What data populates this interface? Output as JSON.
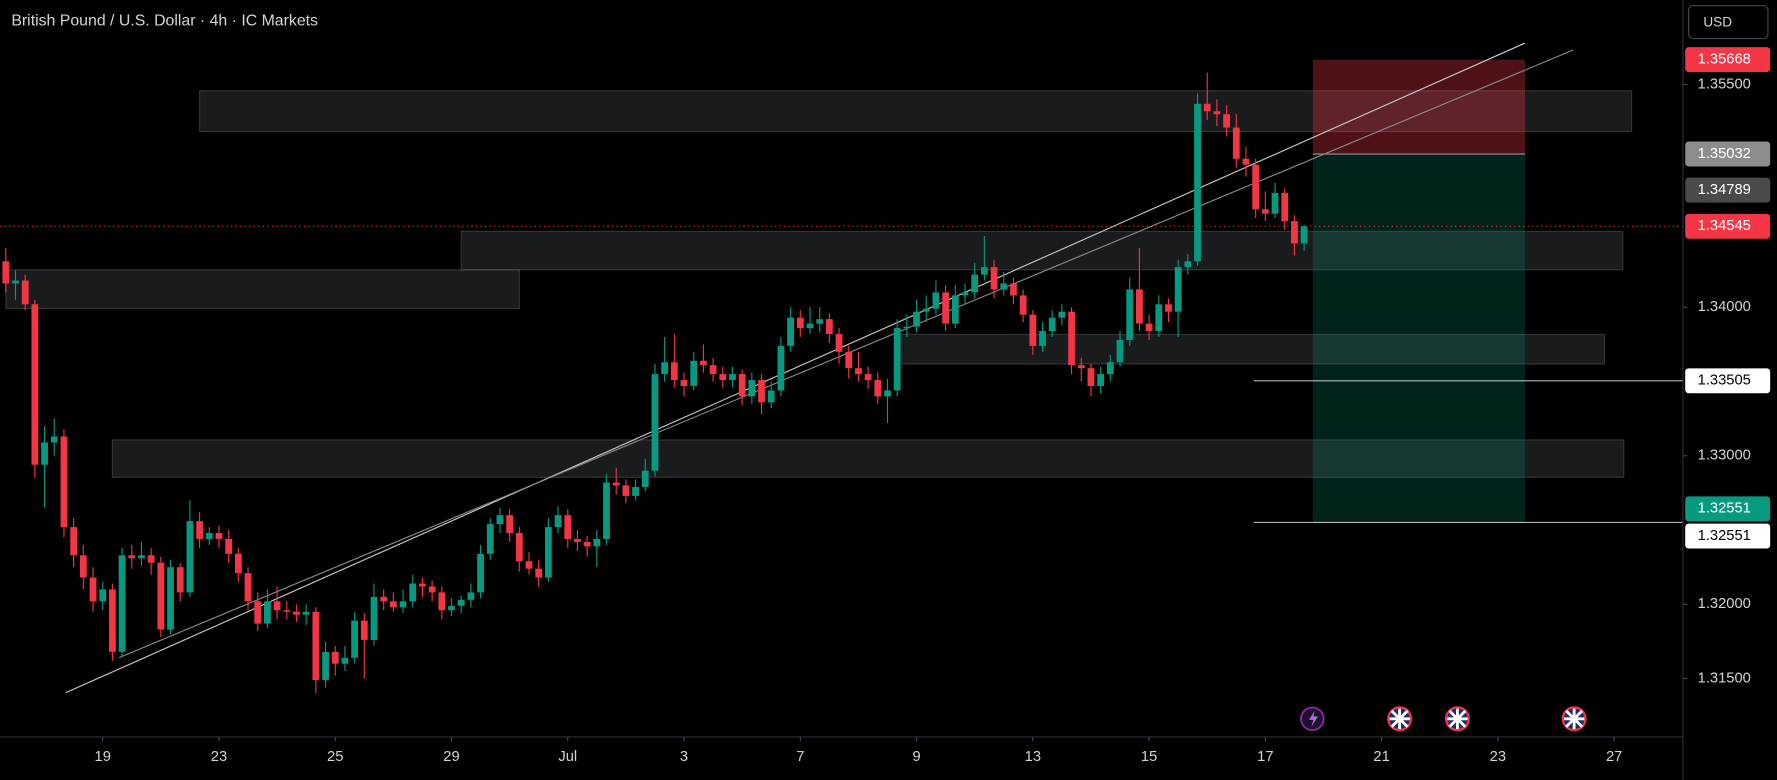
{
  "chart_data": {
    "type": "candlestick",
    "title": "British Pound / U.S. Dollar · 4h · IC Markets",
    "currency": "USD",
    "up_color": "#089981",
    "down_color": "#f23645",
    "xlim": [
      -0.6,
      173.1
    ],
    "ylim": [
      1.31107,
      1.36069
    ],
    "xticks": [
      {
        "value": 10,
        "label": "19"
      },
      {
        "value": 22,
        "label": "23"
      },
      {
        "value": 34,
        "label": "25"
      },
      {
        "value": 46,
        "label": "29"
      },
      {
        "value": 58,
        "label": "Jul"
      },
      {
        "value": 70,
        "label": "3"
      },
      {
        "value": 82,
        "label": "7"
      },
      {
        "value": 94,
        "label": "9"
      },
      {
        "value": 106,
        "label": "13"
      },
      {
        "value": 118,
        "label": "15"
      },
      {
        "value": 130,
        "label": "17"
      },
      {
        "value": 142,
        "label": "21"
      },
      {
        "value": 154,
        "label": "23"
      },
      {
        "value": 166,
        "label": "27"
      }
    ],
    "yticks": [
      {
        "value": 1.355,
        "label": "1.35500"
      },
      {
        "value": 1.34,
        "label": "1.34000"
      },
      {
        "value": 1.33,
        "label": "1.33000"
      },
      {
        "value": 1.32,
        "label": "1.32000"
      },
      {
        "value": 1.315,
        "label": "1.31500"
      }
    ],
    "candles": [
      [
        1.3431,
        1.344,
        1.341,
        1.3416
      ],
      [
        1.3416,
        1.3425,
        1.3405,
        1.3418
      ],
      [
        1.3418,
        1.3422,
        1.3398,
        1.3402
      ],
      [
        1.3402,
        1.3405,
        1.3285,
        1.3294
      ],
      [
        1.3294,
        1.332,
        1.3265,
        1.3309
      ],
      [
        1.3309,
        1.3325,
        1.33,
        1.3313
      ],
      [
        1.3313,
        1.3318,
        1.3245,
        1.3252
      ],
      [
        1.3252,
        1.3258,
        1.3225,
        1.3233
      ],
      [
        1.3233,
        1.324,
        1.321,
        1.3218
      ],
      [
        1.3218,
        1.3225,
        1.3195,
        1.3202
      ],
      [
        1.3202,
        1.3215,
        1.3196,
        1.321
      ],
      [
        1.321,
        1.3214,
        1.3162,
        1.3168
      ],
      [
        1.3168,
        1.3238,
        1.3165,
        1.3233
      ],
      [
        1.3233,
        1.324,
        1.3224,
        1.3231
      ],
      [
        1.3231,
        1.3242,
        1.3226,
        1.3233
      ],
      [
        1.3233,
        1.3238,
        1.322,
        1.3228
      ],
      [
        1.3228,
        1.3232,
        1.3178,
        1.3183
      ],
      [
        1.3183,
        1.323,
        1.318,
        1.3225
      ],
      [
        1.3225,
        1.3228,
        1.3202,
        1.3208
      ],
      [
        1.3208,
        1.327,
        1.3205,
        1.3256
      ],
      [
        1.3256,
        1.3262,
        1.3238,
        1.3244
      ],
      [
        1.3244,
        1.3252,
        1.324,
        1.3248
      ],
      [
        1.3248,
        1.3253,
        1.3238,
        1.3244
      ],
      [
        1.3244,
        1.325,
        1.3228,
        1.3234
      ],
      [
        1.3234,
        1.3238,
        1.3215,
        1.3221
      ],
      [
        1.3221,
        1.3225,
        1.3196,
        1.3202
      ],
      [
        1.3202,
        1.3208,
        1.3182,
        1.3187
      ],
      [
        1.3187,
        1.321,
        1.3184,
        1.3202
      ],
      [
        1.3202,
        1.3212,
        1.319,
        1.3196
      ],
      [
        1.3196,
        1.3202,
        1.319,
        1.3195
      ],
      [
        1.3195,
        1.32,
        1.3188,
        1.3193
      ],
      [
        1.3193,
        1.32,
        1.3186,
        1.3195
      ],
      [
        1.3195,
        1.3198,
        1.314,
        1.3149
      ],
      [
        1.3149,
        1.3175,
        1.3144,
        1.3168
      ],
      [
        1.3168,
        1.3172,
        1.3152,
        1.316
      ],
      [
        1.316,
        1.3172,
        1.3155,
        1.3164
      ],
      [
        1.3164,
        1.3195,
        1.316,
        1.3189
      ],
      [
        1.3189,
        1.3194,
        1.315,
        1.3176
      ],
      [
        1.3176,
        1.3214,
        1.3172,
        1.3205
      ],
      [
        1.3205,
        1.321,
        1.3196,
        1.3202
      ],
      [
        1.3202,
        1.3208,
        1.3195,
        1.3198
      ],
      [
        1.3198,
        1.321,
        1.3194,
        1.3202
      ],
      [
        1.3202,
        1.322,
        1.3198,
        1.3214
      ],
      [
        1.3214,
        1.3218,
        1.3205,
        1.3212
      ],
      [
        1.3212,
        1.3216,
        1.3202,
        1.3208
      ],
      [
        1.3208,
        1.3212,
        1.319,
        1.3196
      ],
      [
        1.3196,
        1.3204,
        1.3192,
        1.3199
      ],
      [
        1.3199,
        1.3206,
        1.3194,
        1.3203
      ],
      [
        1.3203,
        1.3214,
        1.3198,
        1.3208
      ],
      [
        1.3208,
        1.324,
        1.3204,
        1.3234
      ],
      [
        1.3234,
        1.3258,
        1.323,
        1.3254
      ],
      [
        1.3254,
        1.3265,
        1.3248,
        1.326
      ],
      [
        1.326,
        1.3264,
        1.3242,
        1.3248
      ],
      [
        1.3248,
        1.3252,
        1.3222,
        1.3229
      ],
      [
        1.3229,
        1.3235,
        1.322,
        1.3224
      ],
      [
        1.3224,
        1.323,
        1.3212,
        1.3218
      ],
      [
        1.3218,
        1.3258,
        1.3215,
        1.3252
      ],
      [
        1.3252,
        1.3266,
        1.3248,
        1.326
      ],
      [
        1.326,
        1.3264,
        1.3238,
        1.3244
      ],
      [
        1.3244,
        1.325,
        1.3236,
        1.3242
      ],
      [
        1.3242,
        1.3246,
        1.3232,
        1.3239
      ],
      [
        1.3239,
        1.325,
        1.3225,
        1.3244
      ],
      [
        1.3244,
        1.3288,
        1.324,
        1.3282
      ],
      [
        1.3282,
        1.3292,
        1.3274,
        1.328
      ],
      [
        1.328,
        1.3284,
        1.3268,
        1.3273
      ],
      [
        1.3273,
        1.3284,
        1.327,
        1.3279
      ],
      [
        1.3279,
        1.3298,
        1.3276,
        1.329
      ],
      [
        1.329,
        1.3362,
        1.3286,
        1.3355
      ],
      [
        1.3355,
        1.338,
        1.335,
        1.3363
      ],
      [
        1.3363,
        1.3382,
        1.3346,
        1.3351
      ],
      [
        1.3351,
        1.3356,
        1.334,
        1.3347
      ],
      [
        1.3347,
        1.337,
        1.3344,
        1.3364
      ],
      [
        1.3364,
        1.3375,
        1.3356,
        1.3361
      ],
      [
        1.3361,
        1.3366,
        1.335,
        1.3355
      ],
      [
        1.3355,
        1.336,
        1.3346,
        1.3351
      ],
      [
        1.3351,
        1.336,
        1.3346,
        1.3355
      ],
      [
        1.3355,
        1.3358,
        1.3334,
        1.334
      ],
      [
        1.334,
        1.3356,
        1.3335,
        1.3351
      ],
      [
        1.3351,
        1.3355,
        1.3328,
        1.3336
      ],
      [
        1.3336,
        1.335,
        1.3332,
        1.3344
      ],
      [
        1.3344,
        1.338,
        1.334,
        1.3374
      ],
      [
        1.3374,
        1.34,
        1.337,
        1.3393
      ],
      [
        1.3393,
        1.3398,
        1.338,
        1.3386
      ],
      [
        1.3386,
        1.34,
        1.3382,
        1.3389
      ],
      [
        1.3389,
        1.34,
        1.3383,
        1.3392
      ],
      [
        1.3392,
        1.3396,
        1.3376,
        1.3382
      ],
      [
        1.3382,
        1.3386,
        1.3362,
        1.337
      ],
      [
        1.337,
        1.3374,
        1.3352,
        1.3359
      ],
      [
        1.3359,
        1.337,
        1.335,
        1.3355
      ],
      [
        1.3355,
        1.336,
        1.3345,
        1.3351
      ],
      [
        1.3351,
        1.3356,
        1.3335,
        1.334
      ],
      [
        1.334,
        1.3352,
        1.3322,
        1.3344
      ],
      [
        1.3344,
        1.3392,
        1.334,
        1.3386
      ],
      [
        1.3386,
        1.3395,
        1.338,
        1.3387
      ],
      [
        1.3387,
        1.3405,
        1.3383,
        1.3397
      ],
      [
        1.3397,
        1.3408,
        1.339,
        1.3399
      ],
      [
        1.3399,
        1.3418,
        1.3395,
        1.341
      ],
      [
        1.341,
        1.3415,
        1.3384,
        1.3389
      ],
      [
        1.3389,
        1.3415,
        1.3386,
        1.3408
      ],
      [
        1.3408,
        1.3416,
        1.3402,
        1.341
      ],
      [
        1.341,
        1.343,
        1.3406,
        1.3422
      ],
      [
        1.3422,
        1.3448,
        1.3418,
        1.3427
      ],
      [
        1.3427,
        1.3432,
        1.3406,
        1.3412
      ],
      [
        1.3412,
        1.3424,
        1.3408,
        1.3416
      ],
      [
        1.3416,
        1.342,
        1.3402,
        1.3408
      ],
      [
        1.3408,
        1.3412,
        1.339,
        1.3395
      ],
      [
        1.3395,
        1.3398,
        1.3368,
        1.3374
      ],
      [
        1.3374,
        1.339,
        1.337,
        1.3384
      ],
      [
        1.3384,
        1.3398,
        1.338,
        1.3393
      ],
      [
        1.3393,
        1.3402,
        1.3388,
        1.3397
      ],
      [
        1.3397,
        1.34,
        1.3355,
        1.3361
      ],
      [
        1.3361,
        1.3366,
        1.335,
        1.3359
      ],
      [
        1.3359,
        1.3362,
        1.334,
        1.3347
      ],
      [
        1.3347,
        1.336,
        1.3342,
        1.3355
      ],
      [
        1.3355,
        1.3368,
        1.335,
        1.3363
      ],
      [
        1.3363,
        1.3384,
        1.336,
        1.3378
      ],
      [
        1.3378,
        1.342,
        1.3374,
        1.3412
      ],
      [
        1.3412,
        1.344,
        1.3384,
        1.3389
      ],
      [
        1.3389,
        1.3395,
        1.3378,
        1.3384
      ],
      [
        1.3384,
        1.3408,
        1.338,
        1.3402
      ],
      [
        1.3402,
        1.3406,
        1.339,
        1.3397
      ],
      [
        1.3397,
        1.3432,
        1.338,
        1.3427
      ],
      [
        1.3427,
        1.3436,
        1.3422,
        1.3431
      ],
      [
        1.3431,
        1.3544,
        1.3428,
        1.3537
      ],
      [
        1.3537,
        1.3558,
        1.3526,
        1.3532
      ],
      [
        1.3532,
        1.354,
        1.3522,
        1.353
      ],
      [
        1.353,
        1.3536,
        1.3515,
        1.3521
      ],
      [
        1.3521,
        1.353,
        1.3494,
        1.35
      ],
      [
        1.35,
        1.3508,
        1.3488,
        1.3496
      ],
      [
        1.3496,
        1.35,
        1.346,
        1.3466
      ],
      [
        1.3466,
        1.3478,
        1.3458,
        1.3463
      ],
      [
        1.3463,
        1.3484,
        1.346,
        1.3477
      ],
      [
        1.3477,
        1.348,
        1.3452,
        1.3458
      ],
      [
        1.3458,
        1.3462,
        1.3435,
        1.3443
      ],
      [
        1.3443,
        1.34555,
        1.3438,
        1.34545
      ]
    ],
    "zones": [
      {
        "from": 20,
        "to": 167.8,
        "low": 1.35183,
        "high": 1.35458
      },
      {
        "from": 47,
        "to": 166.9,
        "low": 1.34252,
        "high": 1.34511
      },
      {
        "from": 0,
        "to": 53,
        "low": 1.33992,
        "high": 1.34252
      },
      {
        "from": 92,
        "to": 165,
        "low": 1.33618,
        "high": 1.33817
      },
      {
        "from": 11,
        "to": 167,
        "low": 1.32855,
        "high": 1.33107
      }
    ],
    "trendlines": [
      {
        "x": [
          6.2,
          156.8
        ],
        "y": [
          1.31405,
          1.35779
        ]
      },
      {
        "x": [
          11.7,
          161.8
        ],
        "y": [
          1.31641,
          1.35733
        ]
      }
    ],
    "position": {
      "from": 134.9,
      "to": 156.8,
      "entry": 1.35032,
      "stop": 1.35668,
      "target": 1.32551
    },
    "levels": [
      {
        "value": 1.33505,
        "from": 128.8
      },
      {
        "value": 1.32551,
        "from": 128.8
      }
    ],
    "price_line": 1.34545,
    "badges": [
      {
        "value": 1.35668,
        "label": "1.35668",
        "bg": "#f23645",
        "fg": "#ffffff"
      },
      {
        "value": 1.35032,
        "label": "1.35032",
        "bg": "#8c8c8c",
        "fg": "#ffffff"
      },
      {
        "value": 1.34789,
        "label": "1.34789",
        "bg": "#4a4a4a",
        "fg": "#ffffff"
      },
      {
        "value": 1.34545,
        "label": "1.34545",
        "bg": "#f23645",
        "fg": "#ffffff"
      },
      {
        "value": 1.33505,
        "label": "1.33505",
        "bg": "#ffffff",
        "fg": "#000000"
      },
      {
        "value": 1.32551,
        "label": "1.32551",
        "bg": "#089981",
        "fg": "#ffffff",
        "shift": -1
      },
      {
        "value": 1.32551,
        "label": "1.32551",
        "bg": "#ffffff",
        "fg": "#000000",
        "shift": 1
      }
    ]
  }
}
